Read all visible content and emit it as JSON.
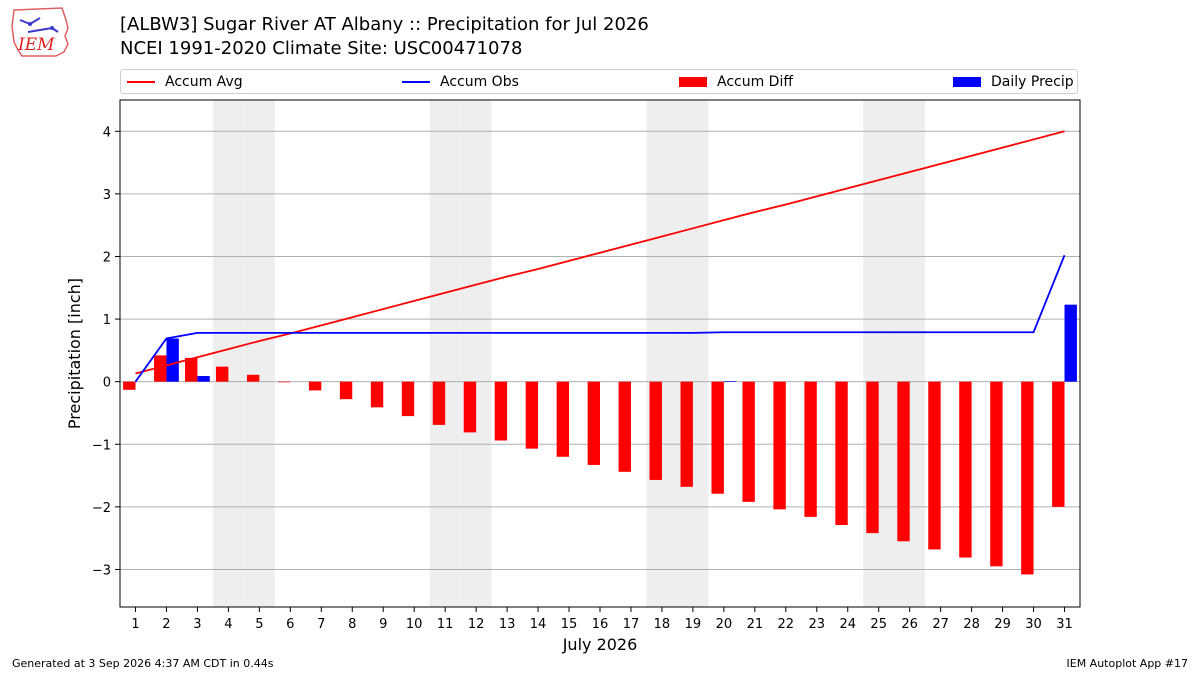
{
  "header": {
    "logo_text": "IEM",
    "title_line1": "[ALBW3] Sugar River  AT Albany :: Precipitation for Jul 2026",
    "title_line2": "NCEI 1991-2020 Climate Site: USC00471078"
  },
  "legend": {
    "items": [
      {
        "label": "Accum Avg",
        "kind": "line",
        "color": "#ff0000"
      },
      {
        "label": "Accum Obs",
        "kind": "line",
        "color": "#0000ff"
      },
      {
        "label": "Accum Diff",
        "kind": "patch",
        "color": "#ff0000"
      },
      {
        "label": "Daily Precip",
        "kind": "patch",
        "color": "#0000ff"
      }
    ]
  },
  "footer": {
    "left": "Generated at 3 Sep 2026 4:37 AM CDT in 0.44s",
    "right": "IEM Autoplot App #17"
  },
  "chart_data": {
    "type": "bar",
    "xlabel": "July 2026",
    "ylabel": "Precipitation [inch]",
    "ylim": [
      -3.6,
      4.5
    ],
    "xlim": [
      0.5,
      31.5
    ],
    "yticks": [
      -3,
      -2,
      -1,
      0,
      1,
      2,
      3,
      4
    ],
    "ytick_labels": [
      "−3",
      "−2",
      "−1",
      "0",
      "1",
      "2",
      "3",
      "4"
    ],
    "days": [
      1,
      2,
      3,
      4,
      5,
      6,
      7,
      8,
      9,
      10,
      11,
      12,
      13,
      14,
      15,
      16,
      17,
      18,
      19,
      20,
      21,
      22,
      23,
      24,
      25,
      26,
      27,
      28,
      29,
      30,
      31
    ],
    "weekend_days": [
      4,
      5,
      11,
      12,
      18,
      19,
      25,
      26
    ],
    "grid": true,
    "legend_position": "top",
    "series": [
      {
        "name": "Accum Avg",
        "kind": "line",
        "color": "#ff0000",
        "values": [
          0.13,
          0.26,
          0.39,
          0.52,
          0.65,
          0.77,
          0.9,
          1.03,
          1.16,
          1.29,
          1.42,
          1.55,
          1.68,
          1.8,
          1.93,
          2.06,
          2.19,
          2.32,
          2.45,
          2.58,
          2.71,
          2.83,
          2.96,
          3.09,
          3.22,
          3.35,
          3.48,
          3.61,
          3.74,
          3.87,
          4.0
        ]
      },
      {
        "name": "Accum Obs",
        "kind": "line",
        "color": "#0000ff",
        "values": [
          0.0,
          0.69,
          0.78,
          0.78,
          0.78,
          0.78,
          0.78,
          0.78,
          0.78,
          0.78,
          0.78,
          0.78,
          0.78,
          0.78,
          0.78,
          0.78,
          0.78,
          0.78,
          0.78,
          0.79,
          0.79,
          0.79,
          0.79,
          0.79,
          0.79,
          0.79,
          0.79,
          0.79,
          0.79,
          0.79,
          2.02
        ]
      },
      {
        "name": "Accum Diff",
        "kind": "bar",
        "color": "#ff0000",
        "values": [
          -0.13,
          0.42,
          0.38,
          0.24,
          0.11,
          -0.01,
          -0.14,
          -0.28,
          -0.41,
          -0.55,
          -0.69,
          -0.81,
          -0.94,
          -1.07,
          -1.2,
          -1.33,
          -1.44,
          -1.57,
          -1.68,
          -1.79,
          -1.92,
          -2.04,
          -2.16,
          -2.29,
          -2.42,
          -2.55,
          -2.68,
          -2.81,
          -2.95,
          -3.08,
          -2.0
        ]
      },
      {
        "name": "Daily Precip",
        "kind": "bar",
        "color": "#0000ff",
        "values": [
          0.0,
          0.69,
          0.09,
          0.0,
          0.0,
          0.0,
          0.0,
          0.0,
          0.0,
          0.0,
          0.0,
          0.0,
          0.0,
          0.0,
          0.0,
          0.0,
          0.0,
          0.0,
          0.0,
          0.01,
          0.0,
          0.0,
          0.0,
          0.0,
          0.0,
          0.0,
          0.0,
          0.0,
          0.0,
          0.0,
          1.23
        ]
      }
    ]
  }
}
